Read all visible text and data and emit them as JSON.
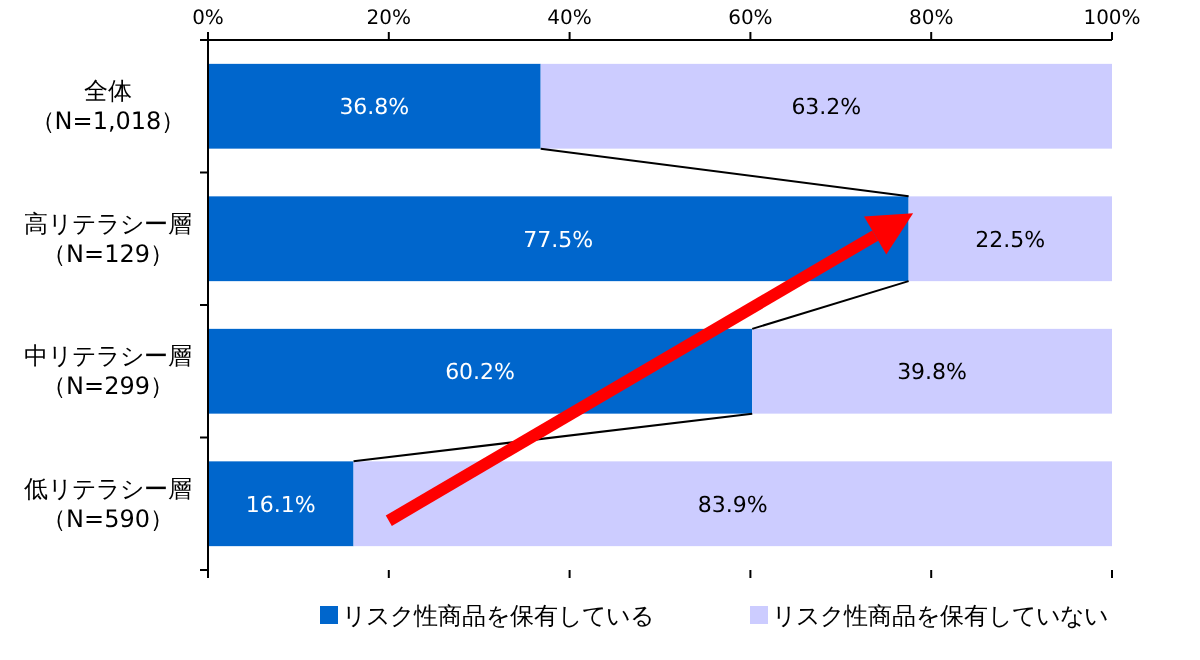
{
  "chart_data": {
    "type": "bar",
    "orientation": "horizontal",
    "stacked": true,
    "categories": [
      "全体（N=1,018）",
      "高リテラシー層（N=129）",
      "中リテラシー層（N=299）",
      "低リテラシー層（N=590）"
    ],
    "series": [
      {
        "name": "リスク性商品を保有している",
        "color": "#0066cc",
        "values": [
          36.8,
          77.5,
          60.2,
          16.1
        ],
        "value_labels": [
          "36.8%",
          "77.5%",
          "60.2%",
          "16.1%"
        ]
      },
      {
        "name": "リスク性商品を保有していない",
        "color": "#ccccff",
        "values": [
          63.2,
          22.5,
          39.8,
          83.9
        ],
        "value_labels": [
          "63.2%",
          "22.5%",
          "39.8%",
          "83.9%"
        ]
      }
    ],
    "xlim": [
      0,
      100
    ],
    "xticks": [
      {
        "value": 0,
        "label": "0%"
      },
      {
        "value": 20,
        "label": "20%"
      },
      {
        "value": 40,
        "label": "40%"
      },
      {
        "value": 60,
        "label": "60%"
      },
      {
        "value": 80,
        "label": "80%"
      },
      {
        "value": 100,
        "label": "100%"
      }
    ],
    "grid": false,
    "legend": "bottom"
  }
}
